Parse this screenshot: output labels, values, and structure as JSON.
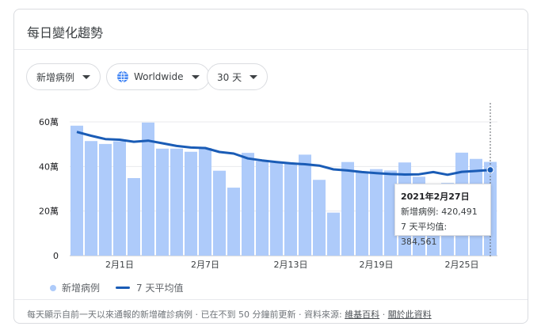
{
  "card": {
    "title": "每日變化趨勢"
  },
  "filters": {
    "metric": "新增病例",
    "region": "Worldwide",
    "range": "30 天"
  },
  "legend": {
    "bars": "新增病例",
    "line": "7 天平均值"
  },
  "tooltip": {
    "date": "2021年2月27日",
    "cases_label": "新增病例:",
    "cases_value": "420,491",
    "avg_label": "7 天平均值:",
    "avg_value": "384,561"
  },
  "footer": {
    "text": "每天顯示自前一天以來通報的新增確診病例 · 已在不到 50 分鐘前更新 · 資料來源:",
    "link_wiki": "維基百科",
    "dot": "·",
    "link_about": "關於此資料"
  },
  "colors": {
    "bar": "#aecbfa",
    "line": "#1a5cb6",
    "grid": "#e8eaed"
  },
  "chart_data": {
    "type": "bar",
    "ylim": [
      0,
      600000
    ],
    "y_ticks": [
      0,
      200000,
      400000,
      600000
    ],
    "y_tick_labels": [
      "0",
      "20萬",
      "40萬",
      "60萬"
    ],
    "x_tick_labels": [
      "2月1日",
      "2月7日",
      "2月13日",
      "2月19日",
      "2月25日"
    ],
    "x_tick_indices": [
      3,
      9,
      15,
      21,
      27
    ],
    "series": [
      {
        "name": "新增病例",
        "type": "bar",
        "values": [
          583000,
          514000,
          501000,
          513000,
          348000,
          597000,
          480000,
          480000,
          466000,
          483000,
          381000,
          305000,
          461000,
          424000,
          417000,
          416000,
          453000,
          340000,
          193000,
          420000,
          375000,
          388000,
          382000,
          418000,
          354000,
          294000,
          326000,
          462000,
          434000,
          420491
        ]
      },
      {
        "name": "7 天平均值",
        "type": "line",
        "values": [
          555000,
          538000,
          523000,
          520000,
          511000,
          516000,
          504000,
          492000,
          485000,
          483000,
          465000,
          458000,
          436000,
          427000,
          420000,
          414000,
          410000,
          404000,
          387000,
          382000,
          375000,
          370000,
          366000,
          364000,
          365000,
          375000,
          363000,
          376000,
          380000,
          384561
        ]
      }
    ]
  }
}
